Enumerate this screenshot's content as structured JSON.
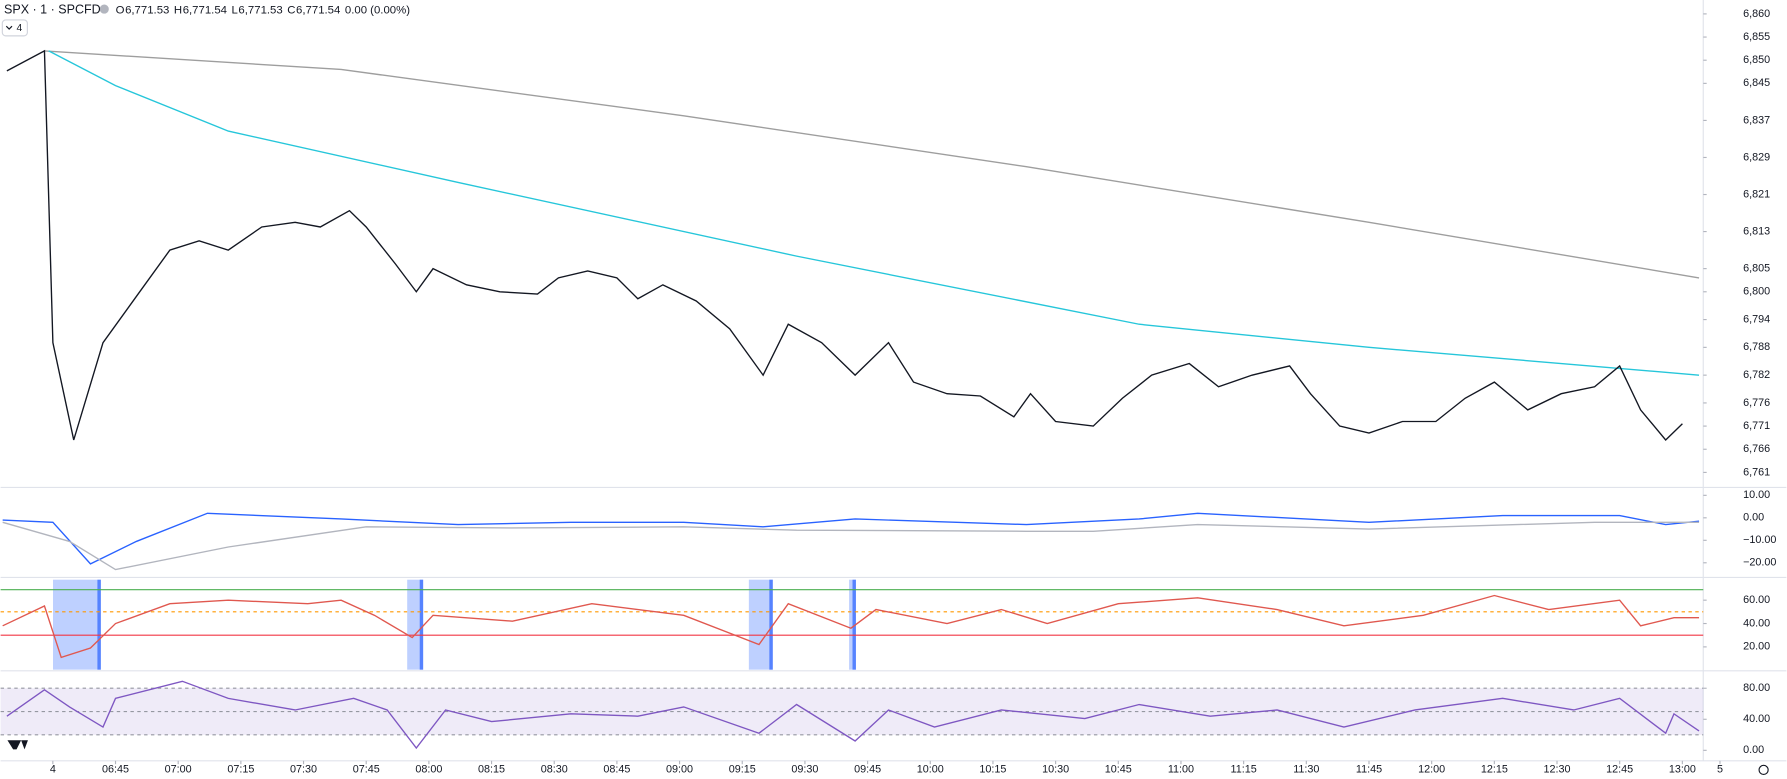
{
  "header": {
    "symbol": "SPX · 1 · SPCFD",
    "ohlc": [
      {
        "label": "O",
        "value": "6,771.53"
      },
      {
        "label": "H",
        "value": "6,771.54"
      },
      {
        "label": "L",
        "value": "6,771.53"
      },
      {
        "label": "C",
        "value": "6,771.54"
      }
    ],
    "change": "0.00 (0.00%)",
    "indicators_button": "4"
  },
  "chart_data": [
    {
      "type": "line",
      "xlim": [
        377.5,
        785
      ],
      "ylim": [
        6758,
        6863
      ],
      "yticks": [
        {
          "value": 6860,
          "label": "6,860"
        },
        {
          "value": 6855,
          "label": "6,855"
        },
        {
          "value": 6850,
          "label": "6,850"
        },
        {
          "value": 6845,
          "label": "6,845"
        },
        {
          "value": 6837,
          "label": "6,837"
        },
        {
          "value": 6829,
          "label": "6,829"
        },
        {
          "value": 6821,
          "label": "6,821"
        },
        {
          "value": 6813,
          "label": "6,813"
        },
        {
          "value": 6805,
          "label": "6,805"
        },
        {
          "value": 6800,
          "label": "6,800"
        },
        {
          "value": 6794,
          "label": "6,794"
        },
        {
          "value": 6788,
          "label": "6,788"
        },
        {
          "value": 6782,
          "label": "6,782"
        },
        {
          "value": 6776,
          "label": "6,776"
        },
        {
          "value": 6771,
          "label": "6,771"
        },
        {
          "value": 6766,
          "label": "6,766"
        },
        {
          "value": 6761,
          "label": "6,761"
        }
      ],
      "xticks": [
        {
          "value": 390,
          "label": "4"
        },
        {
          "value": 405,
          "label": "06:45"
        },
        {
          "value": 420,
          "label": "07:00"
        },
        {
          "value": 435,
          "label": "07:15"
        },
        {
          "value": 450,
          "label": "07:30"
        },
        {
          "value": 465,
          "label": "07:45"
        },
        {
          "value": 480,
          "label": "08:00"
        },
        {
          "value": 495,
          "label": "08:15"
        },
        {
          "value": 510,
          "label": "08:30"
        },
        {
          "value": 525,
          "label": "08:45"
        },
        {
          "value": 540,
          "label": "09:00"
        },
        {
          "value": 555,
          "label": "09:15"
        },
        {
          "value": 570,
          "label": "09:30"
        },
        {
          "value": 585,
          "label": "09:45"
        },
        {
          "value": 600,
          "label": "10:00"
        },
        {
          "value": 615,
          "label": "10:15"
        },
        {
          "value": 630,
          "label": "10:30"
        },
        {
          "value": 645,
          "label": "10:45"
        },
        {
          "value": 660,
          "label": "11:00"
        },
        {
          "value": 675,
          "label": "11:15"
        },
        {
          "value": 690,
          "label": "11:30"
        },
        {
          "value": 705,
          "label": "11:45"
        },
        {
          "value": 720,
          "label": "12:00"
        },
        {
          "value": 735,
          "label": "12:15"
        },
        {
          "value": 750,
          "label": "12:30"
        },
        {
          "value": 765,
          "label": "12:45"
        },
        {
          "value": 780,
          "label": "13:00"
        },
        {
          "value": 789,
          "label": "5"
        }
      ],
      "series": [
        {
          "color": "#9e9e9e",
          "x": [
            388,
            459,
            541,
            623,
            705,
            784
          ],
          "values": [
            6852,
            6848,
            6838,
            6827,
            6815,
            6803
          ]
        },
        {
          "color": "#26c6da",
          "x": [
            389,
            405,
            432,
            487,
            568,
            650,
            705,
            784
          ],
          "values": [
            6852,
            6844.5,
            6834.7,
            6823.6,
            6807.7,
            6793,
            6788,
            6782
          ]
        },
        {
          "color": "#131722",
          "x": [
            379,
            388,
            390,
            395,
            402,
            410,
            418,
            425,
            432,
            440,
            448,
            454,
            461,
            465,
            472,
            477,
            481,
            489,
            497,
            506,
            511,
            518,
            525,
            530,
            536,
            544,
            552,
            560,
            566,
            574,
            582,
            590,
            596,
            604,
            612,
            620,
            624,
            630,
            639,
            646,
            653,
            662,
            669,
            677,
            686,
            691,
            698,
            705,
            713,
            721,
            728,
            735,
            743,
            751,
            759,
            765,
            770,
            776,
            780
          ],
          "values": [
            6847.7,
            6852,
            6789,
            6768,
            6789,
            6799,
            6809,
            6811,
            6809,
            6814,
            6815,
            6814,
            6817.5,
            6814,
            6806,
            6800,
            6805,
            6801.5,
            6800,
            6799.5,
            6803,
            6804.5,
            6803,
            6798.5,
            6801.5,
            6798,
            6792,
            6782,
            6793,
            6789,
            6782,
            6789,
            6780.5,
            6778,
            6777.5,
            6773,
            6778,
            6772,
            6771,
            6777,
            6782,
            6784.5,
            6779.5,
            6782,
            6784,
            6778,
            6771,
            6769.5,
            6772,
            6772,
            6777,
            6780.5,
            6774.5,
            6778,
            6779.5,
            6784,
            6774.5,
            6768,
            6771.5
          ]
        }
      ]
    },
    {
      "type": "line",
      "xlim": [
        377.5,
        785
      ],
      "ylim": [
        -26,
        13
      ],
      "yticks": [
        {
          "value": 10,
          "label": "10.00"
        },
        {
          "value": 0,
          "label": "0.00"
        },
        {
          "value": -10,
          "label": "−10.00"
        },
        {
          "value": -20,
          "label": "−20.00"
        }
      ],
      "series": [
        {
          "color": "#2962ff",
          "x": [
            378,
            390,
            399,
            410,
            427,
            459,
            487,
            514,
            541,
            560,
            582,
            623,
            650,
            664,
            705,
            737,
            765,
            776,
            784
          ],
          "values": [
            -1,
            -2,
            -20.5,
            -10.5,
            2,
            -0.5,
            -3,
            -2,
            -2,
            -4,
            -0.5,
            -3,
            -0.5,
            2,
            -2,
            1,
            1,
            -3,
            -1.5
          ]
        },
        {
          "color": "#b2b5be",
          "x": [
            378,
            394,
            405,
            432,
            465,
            500,
            541,
            568,
            623,
            639,
            664,
            705,
            759,
            784
          ],
          "values": [
            -2,
            -10.5,
            -23,
            -13,
            -4,
            -4.5,
            -4,
            -5.5,
            -6,
            -6,
            -3,
            -5,
            -2,
            -2
          ]
        }
      ]
    },
    {
      "type": "line",
      "xlim": [
        377.5,
        785
      ],
      "ylim": [
        0.5,
        78.5
      ],
      "yticks": [
        {
          "value": 60,
          "label": "60.00"
        },
        {
          "value": 40,
          "label": "40.00"
        },
        {
          "value": 20,
          "label": "20.00"
        }
      ],
      "hlines": [
        {
          "value": 69,
          "color": "#4caf50"
        },
        {
          "value": 50,
          "color": "#ff9800"
        },
        {
          "value": 30,
          "color": "#f23645"
        }
      ],
      "series": [
        {
          "color": "#e0584f",
          "x": [
            378,
            388,
            392,
            399,
            405,
            418,
            432,
            451,
            459,
            467,
            476,
            481,
            500,
            519,
            541,
            559,
            566,
            581,
            587,
            604,
            617,
            628,
            645,
            664,
            683,
            699,
            718,
            735,
            748,
            765,
            770,
            778,
            784
          ],
          "values": [
            38,
            55,
            11,
            19,
            40,
            57,
            60,
            57,
            60,
            47,
            28,
            47,
            42,
            57,
            47,
            22,
            57,
            36,
            52,
            40,
            52,
            40,
            57,
            62,
            52,
            38,
            47,
            64,
            52,
            60,
            38,
            45,
            45
          ]
        }
      ]
    },
    {
      "type": "line",
      "xlim": [
        377.5,
        785
      ],
      "ylim": [
        -12,
        101
      ],
      "yticks": [
        {
          "value": 80,
          "label": "80.00"
        },
        {
          "value": 40,
          "label": "40.00"
        },
        {
          "value": 0,
          "label": "0.00"
        }
      ],
      "band": [
        20,
        80
      ],
      "hlines": [
        {
          "value": 80,
          "color": "#9598a1"
        },
        {
          "value": 50,
          "color": "#9598a1"
        },
        {
          "value": 20,
          "color": "#9598a1"
        }
      ],
      "series": [
        {
          "color": "#7e57c2",
          "x": [
            379,
            388,
            394,
            402,
            405,
            421,
            432,
            448,
            462,
            470,
            477,
            484,
            495,
            514,
            530,
            541,
            559,
            568,
            582,
            590,
            601,
            617,
            637,
            650,
            667,
            683,
            699,
            716,
            737,
            754,
            765,
            776,
            778,
            784
          ],
          "values": [
            44,
            78,
            56,
            30,
            67,
            89,
            67,
            52,
            67,
            52,
            3,
            52,
            37,
            47,
            44,
            56,
            22,
            59,
            12,
            52,
            30,
            52,
            41,
            59,
            44,
            52,
            30,
            52,
            67,
            52,
            67,
            22,
            47,
            25
          ]
        }
      ]
    }
  ]
}
